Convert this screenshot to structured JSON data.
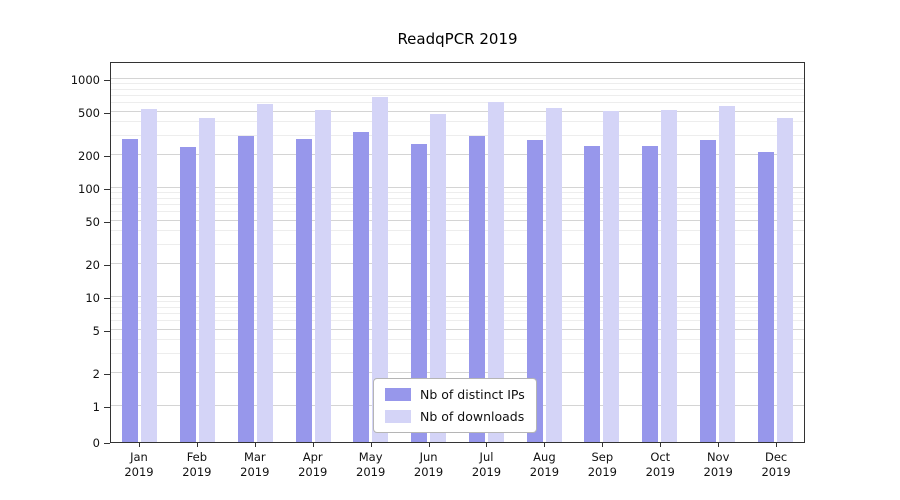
{
  "chart_data": {
    "type": "bar",
    "title": "ReadqPCR 2019",
    "categories": [
      "Jan",
      "Feb",
      "Mar",
      "Apr",
      "May",
      "Jun",
      "Jul",
      "Aug",
      "Sep",
      "Oct",
      "Nov",
      "Dec"
    ],
    "year_label": "2019",
    "series": [
      {
        "name": "Nb of distinct IPs",
        "color": "#9797eb",
        "values": [
          280,
          240,
          300,
          280,
          330,
          255,
          300,
          275,
          245,
          245,
          275,
          215
        ]
      },
      {
        "name": "Nb of downloads",
        "color": "#d4d4f7",
        "values": [
          530,
          440,
          590,
          520,
          680,
          480,
          620,
          540,
          505,
          515,
          560,
          440
        ]
      }
    ],
    "yticks": [
      0,
      1,
      2,
      5,
      10,
      20,
      50,
      100,
      200,
      500,
      1000
    ],
    "yscale": "log",
    "ylim": [
      0,
      1000
    ],
    "grid": true,
    "legend_position": "lower center"
  }
}
